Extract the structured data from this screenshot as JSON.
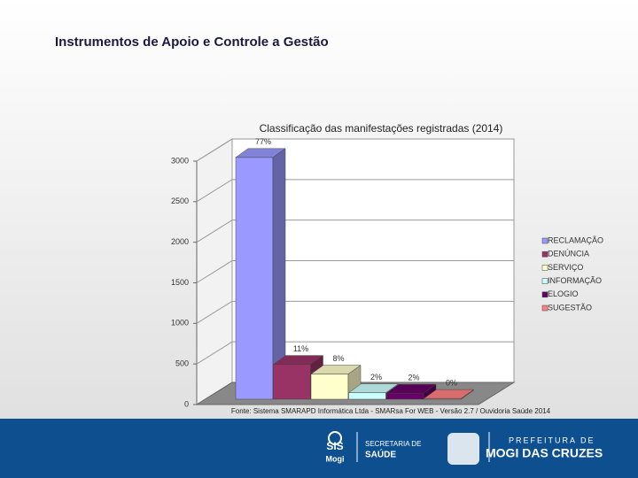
{
  "slide_title": "Instrumentos de Apoio e Controle a Gestão",
  "chart_data": {
    "type": "bar3d",
    "title": "Classificação das manifestações registradas (2014)",
    "categories": [
      "RECLAMAÇÃO",
      "DENÚNCIA",
      "SERVIÇO",
      "INFORMAÇÃO",
      "ELOGIO",
      "SUGESTÃO"
    ],
    "values": [
      2980,
      430,
      310,
      80,
      75,
      10
    ],
    "shares": [
      "77%",
      "11%",
      "8%",
      "2%",
      "2%",
      "0%"
    ],
    "colors": [
      "#9999ff",
      "#993366",
      "#ffffcc",
      "#ccffff",
      "#660066",
      "#ff8080"
    ],
    "ylim": [
      0,
      3000
    ],
    "yticks": [
      0,
      500,
      1000,
      1500,
      2000,
      2500,
      3000
    ],
    "grid": true,
    "legend": "right",
    "source": "Fonte: Sistema SMARAPD Informática Ltda - SMARsa For WEB - Versão 2.7 / Ouvidoria Saúde 2014"
  },
  "footer": {
    "sis": "SIS",
    "mogi": "Mogi",
    "secretaria": "SECRETARIA DE",
    "saude": "SAÚDE",
    "prefeitura": "PREFEITURA DE",
    "city": "MOGI DAS CRUZES"
  }
}
